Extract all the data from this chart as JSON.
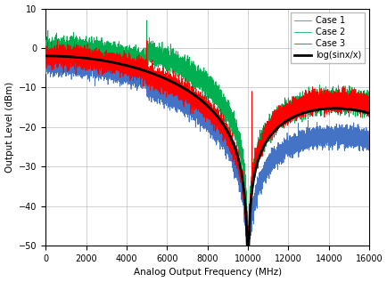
{
  "xlabel": "Analog Output Frequency (MHz)",
  "ylabel": "Output Level (dBm)",
  "xlim": [
    0,
    16000
  ],
  "ylim": [
    -50,
    10
  ],
  "yticks": [
    10,
    0,
    -10,
    -20,
    -30,
    -40,
    -50
  ],
  "xticks": [
    0,
    2000,
    4000,
    6000,
    8000,
    10000,
    12000,
    14000,
    16000
  ],
  "colors": {
    "case1": "#4472c4",
    "case2": "#00b050",
    "case3": "#ff0000",
    "sinc": "#000000"
  },
  "legend_labels": [
    "Case 1",
    "Case 2",
    "Case 3",
    "log(sinx/x)"
  ],
  "fs": 10000,
  "background": "#ffffff",
  "grid_color": "#bfbfbf"
}
